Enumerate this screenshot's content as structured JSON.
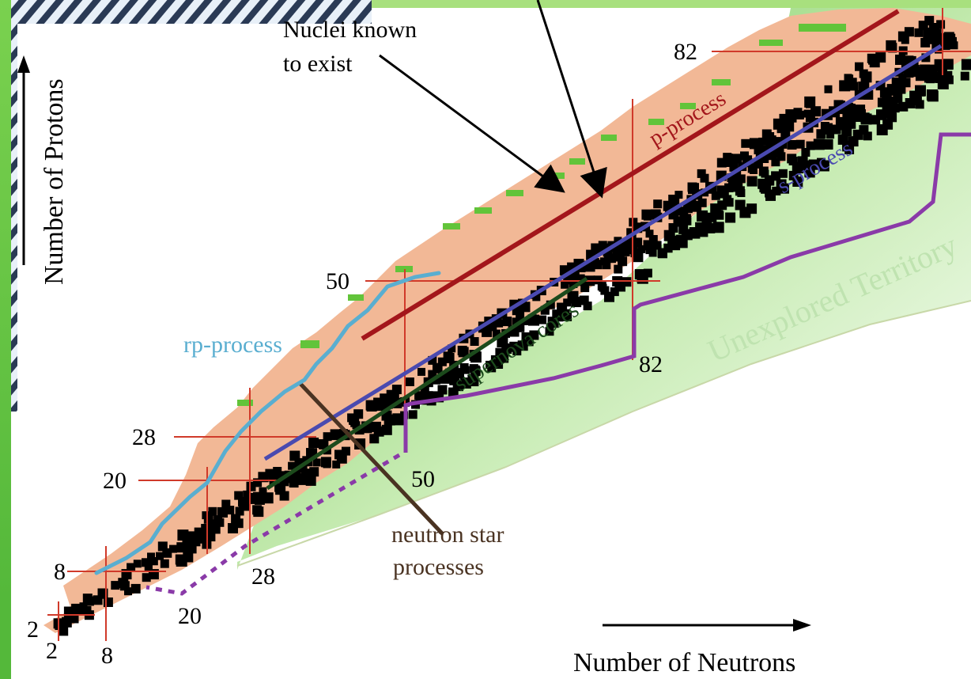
{
  "labels": {
    "nuclei_known": [
      "Nuclei known",
      "to exist"
    ],
    "y_axis": "Number of Protons",
    "x_axis": "Number of Neutrons",
    "p_process": "p-process",
    "s_process": "s-process",
    "rp_process": "rp-process",
    "supernova_cores": "supernova cores",
    "unexplored": "Unexplored Territory",
    "neutron_star": [
      "neutron star",
      "processes"
    ]
  },
  "magic_numbers": {
    "protons": [
      "82",
      "50",
      "28",
      "20",
      "8",
      "2"
    ],
    "neutrons": [
      "2",
      "8",
      "20",
      "28",
      "50",
      "82"
    ]
  },
  "colors": {
    "known_nuclei_band": "#f2b896",
    "stable_nuclei": "#000000",
    "p_process": "#a3161b",
    "s_process": "#4a4ab0",
    "rp_process": "#5aaed0",
    "supernova_cores": "#1c4a1c",
    "neutron_star": "#4a3322",
    "unexplored_boundary": "#8a3aa8",
    "unexplored_text": "#bfe3b0",
    "magic_lines": "#d03a2a",
    "background_green": "#8fd46a"
  },
  "icons": [
    "arrow-up-icon",
    "arrow-right-icon"
  ]
}
